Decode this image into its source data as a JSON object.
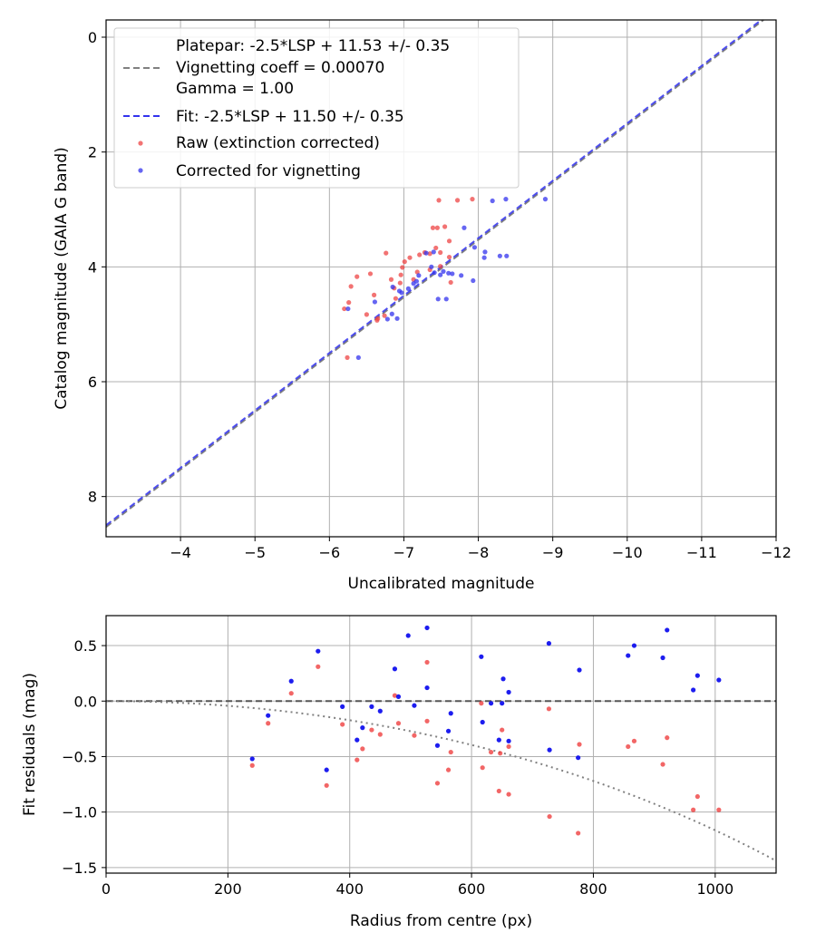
{
  "chart_data": [
    {
      "type": "scatter",
      "xlabel": "Uncalibrated magnitude",
      "ylabel": "Catalog magnitude (GAIA G band)",
      "xlim": [
        -3.0,
        -12.0
      ],
      "ylim": [
        8.7,
        -0.3
      ],
      "x_inverted": true,
      "y_inverted": true,
      "x_ticks": [
        -4,
        -5,
        -6,
        -7,
        -8,
        -9,
        -10,
        -11,
        -12
      ],
      "x_tick_labels": [
        "−4",
        "−5",
        "−6",
        "−7",
        "−8",
        "−9",
        "−10",
        "−11",
        "−12"
      ],
      "y_ticks": [
        0,
        2,
        4,
        6,
        8
      ],
      "y_tick_labels": [
        "0",
        "2",
        "4",
        "6",
        "8"
      ],
      "grid": true,
      "legend_placement": "top-left",
      "lines": [
        {
          "name": "Platepar: -2.5*LSP + 11.53 +/- 0.35",
          "extra_labels": [
            "Vignetting coeff = 0.00070",
            "Gamma = 1.00"
          ],
          "slope": 1.0,
          "intercept": 11.53,
          "style": "dashed",
          "color": "#808080"
        },
        {
          "name": "Fit: -2.5*LSP + 11.50 +/- 0.35",
          "slope": 1.0,
          "intercept": 11.5,
          "style": "dashed",
          "color": "#3333ee"
        }
      ],
      "series": [
        {
          "name": "Raw (extinction corrected)",
          "color": "#ee4444",
          "points": [
            [
              -7.47,
              2.84
            ],
            [
              -7.72,
              2.84
            ],
            [
              -7.92,
              2.82
            ],
            [
              -7.55,
              3.3
            ],
            [
              -7.45,
              3.32
            ],
            [
              -7.61,
              3.55
            ],
            [
              -7.39,
              3.32
            ],
            [
              -6.76,
              3.76
            ],
            [
              -7.08,
              3.84
            ],
            [
              -7.21,
              3.79
            ],
            [
              -7.35,
              3.77
            ],
            [
              -7.49,
              3.75
            ],
            [
              -7.43,
              3.67
            ],
            [
              -7.28,
              3.75
            ],
            [
              -7.01,
              3.91
            ],
            [
              -6.98,
              4.01
            ],
            [
              -7.18,
              4.09
            ],
            [
              -7.35,
              4.05
            ],
            [
              -7.49,
              3.99
            ],
            [
              -7.61,
              3.83
            ],
            [
              -7.63,
              4.27
            ],
            [
              -6.37,
              4.17
            ],
            [
              -6.55,
              4.12
            ],
            [
              -6.83,
              4.22
            ],
            [
              -6.96,
              4.14
            ],
            [
              -7.13,
              4.22
            ],
            [
              -6.29,
              4.34
            ],
            [
              -6.87,
              4.37
            ],
            [
              -6.95,
              4.28
            ],
            [
              -6.6,
              4.49
            ],
            [
              -6.26,
              4.62
            ],
            [
              -6.2,
              4.73
            ],
            [
              -6.5,
              4.83
            ],
            [
              -6.65,
              4.9
            ],
            [
              -6.64,
              4.93
            ],
            [
              -6.74,
              4.85
            ],
            [
              -6.89,
              4.55
            ],
            [
              -6.24,
              5.58
            ]
          ]
        },
        {
          "name": "Corrected for vignetting",
          "color": "#3333ee",
          "points": [
            [
              -8.37,
              2.82
            ],
            [
              -8.9,
              2.82
            ],
            [
              -8.19,
              2.85
            ],
            [
              -7.81,
              3.32
            ],
            [
              -8.09,
              3.74
            ],
            [
              -8.29,
              3.81
            ],
            [
              -8.38,
              3.81
            ],
            [
              -7.3,
              3.76
            ],
            [
              -7.4,
              3.74
            ],
            [
              -7.53,
              4.08
            ],
            [
              -7.65,
              4.12
            ],
            [
              -7.77,
              4.15
            ],
            [
              -7.93,
              4.24
            ],
            [
              -7.49,
              4.14
            ],
            [
              -7.37,
              4.0
            ],
            [
              -7.2,
              4.15
            ],
            [
              -7.13,
              4.29
            ],
            [
              -7.06,
              4.38
            ],
            [
              -6.94,
              4.42
            ],
            [
              -6.85,
              4.35
            ],
            [
              -6.97,
              4.45
            ],
            [
              -7.17,
              4.25
            ],
            [
              -7.46,
              4.56
            ],
            [
              -7.57,
              4.56
            ],
            [
              -7.41,
              4.1
            ],
            [
              -6.25,
              4.73
            ],
            [
              -6.61,
              4.61
            ],
            [
              -6.78,
              4.91
            ],
            [
              -6.91,
              4.9
            ],
            [
              -6.84,
              4.82
            ],
            [
              -6.39,
              5.58
            ],
            [
              -8.08,
              3.84
            ],
            [
              -7.6,
              4.11
            ],
            [
              -7.95,
              3.66
            ]
          ]
        }
      ]
    },
    {
      "type": "scatter",
      "xlabel": "Radius from centre (px)",
      "ylabel": "Fit residuals (mag)",
      "xlim": [
        0,
        1100
      ],
      "ylim": [
        -1.55,
        0.77
      ],
      "x_ticks": [
        0,
        200,
        400,
        600,
        800,
        1000
      ],
      "x_tick_labels": [
        "0",
        "200",
        "400",
        "600",
        "800",
        "1000"
      ],
      "y_ticks": [
        0.5,
        0.0,
        -0.5,
        -1.0,
        -1.5
      ],
      "y_tick_labels": [
        "0.5",
        "0.0",
        "−0.5",
        "−1.0",
        "−1.5"
      ],
      "grid": true,
      "reference_line": {
        "y": 0.0,
        "style": "dashed",
        "color": "#555555"
      },
      "vignetting_curve": {
        "coefficient": 0.0007,
        "gamma": 1.0,
        "style": "dotted",
        "color": "#808080"
      },
      "series": [
        {
          "name": "Raw (extinction corrected)",
          "color": "#ee3333",
          "points": [
            [
              240,
              -0.58
            ],
            [
              266,
              -0.2
            ],
            [
              304,
              0.07
            ],
            [
              348,
              0.31
            ],
            [
              362,
              -0.76
            ],
            [
              388,
              -0.21
            ],
            [
              412,
              -0.53
            ],
            [
              421,
              -0.43
            ],
            [
              436,
              -0.26
            ],
            [
              450,
              -0.3
            ],
            [
              474,
              0.05
            ],
            [
              480,
              -0.2
            ],
            [
              506,
              -0.31
            ],
            [
              527,
              0.35
            ],
            [
              527,
              -0.18
            ],
            [
              544,
              -0.74
            ],
            [
              562,
              -0.62
            ],
            [
              566,
              -0.46
            ],
            [
              616,
              -0.02
            ],
            [
              618,
              -0.6
            ],
            [
              632,
              -0.46
            ],
            [
              645,
              -0.81
            ],
            [
              650,
              -0.26
            ],
            [
              661,
              -0.84
            ],
            [
              661,
              -0.41
            ],
            [
              647,
              -0.47
            ],
            [
              727,
              -0.07
            ],
            [
              728,
              -1.04
            ],
            [
              775,
              -1.19
            ],
            [
              777,
              -0.39
            ],
            [
              857,
              -0.41
            ],
            [
              867,
              -0.36
            ],
            [
              914,
              -0.57
            ],
            [
              921,
              -0.33
            ],
            [
              964,
              -0.98
            ],
            [
              971,
              -0.86
            ],
            [
              1006,
              -0.98
            ]
          ]
        },
        {
          "name": "Corrected for vignetting",
          "color": "#1111ee",
          "points": [
            [
              240,
              -0.52
            ],
            [
              266,
              -0.13
            ],
            [
              304,
              0.18
            ],
            [
              348,
              0.45
            ],
            [
              362,
              -0.62
            ],
            [
              388,
              -0.05
            ],
            [
              412,
              -0.35
            ],
            [
              421,
              -0.24
            ],
            [
              436,
              -0.05
            ],
            [
              450,
              -0.09
            ],
            [
              474,
              0.29
            ],
            [
              480,
              0.04
            ],
            [
              496,
              0.59
            ],
            [
              506,
              -0.04
            ],
            [
              527,
              0.66
            ],
            [
              527,
              0.12
            ],
            [
              544,
              -0.4
            ],
            [
              562,
              -0.27
            ],
            [
              566,
              -0.11
            ],
            [
              616,
              0.4
            ],
            [
              618,
              -0.19
            ],
            [
              632,
              -0.02
            ],
            [
              645,
              -0.35
            ],
            [
              650,
              -0.02
            ],
            [
              652,
              0.2
            ],
            [
              661,
              0.08
            ],
            [
              661,
              -0.36
            ],
            [
              727,
              0.52
            ],
            [
              728,
              -0.44
            ],
            [
              775,
              -0.51
            ],
            [
              777,
              0.28
            ],
            [
              857,
              0.41
            ],
            [
              867,
              0.5
            ],
            [
              914,
              0.39
            ],
            [
              921,
              0.64
            ],
            [
              964,
              0.1
            ],
            [
              971,
              0.23
            ],
            [
              1006,
              0.19
            ]
          ]
        }
      ]
    }
  ]
}
